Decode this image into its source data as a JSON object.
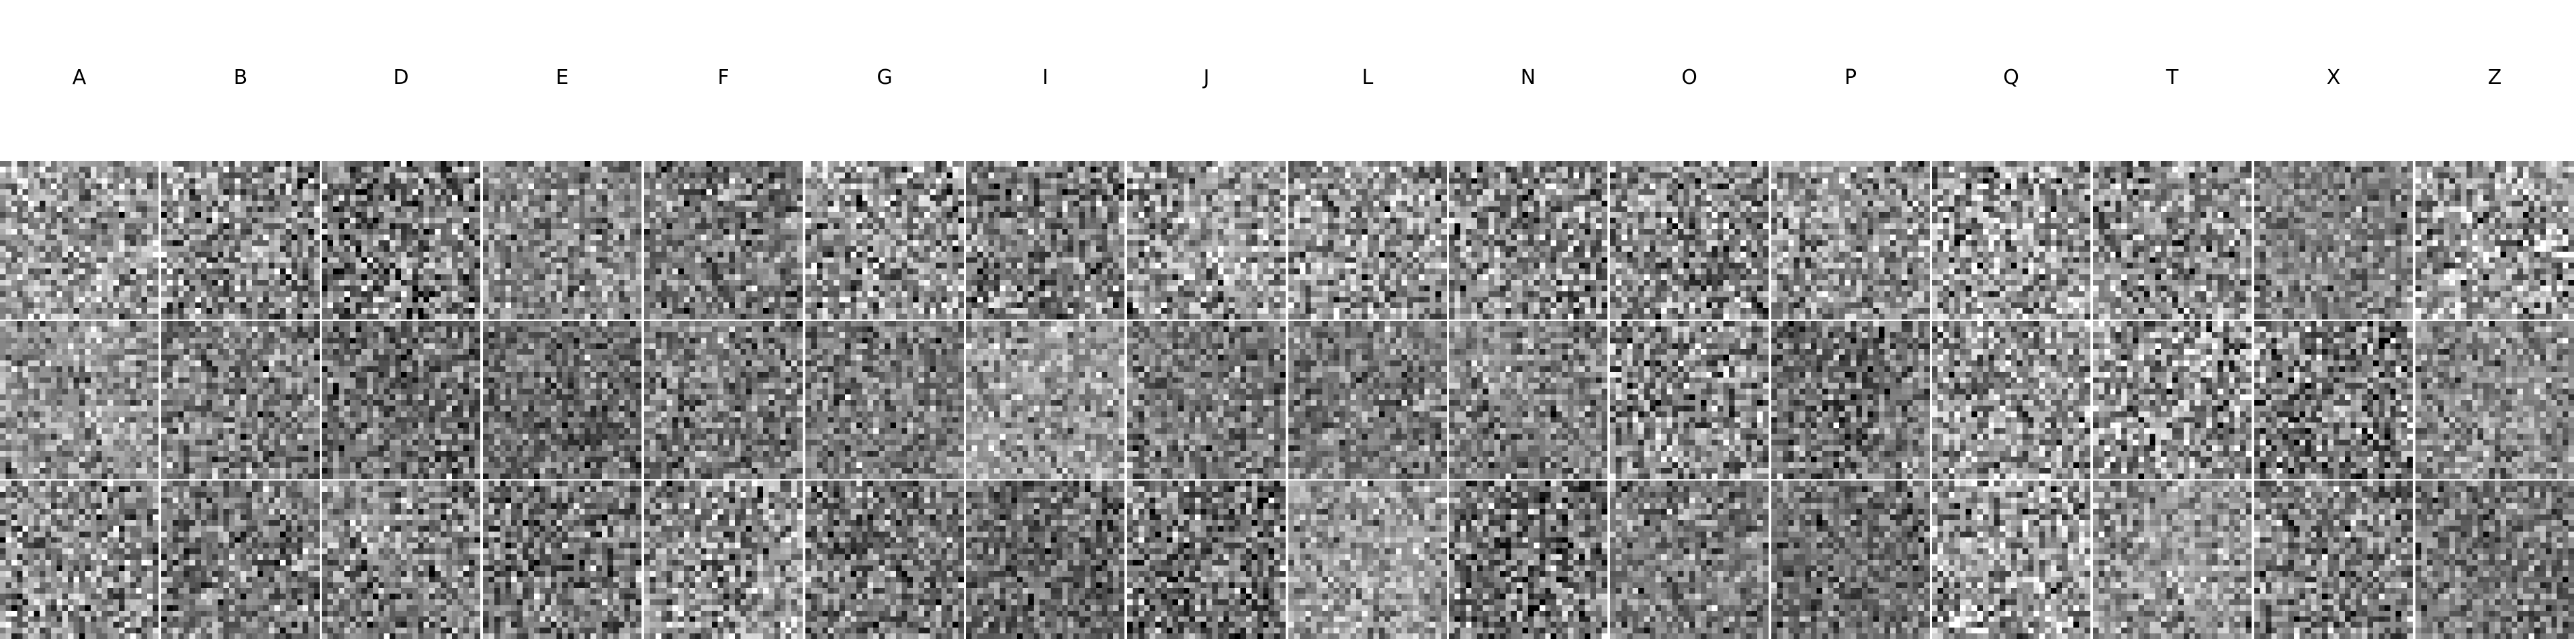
{
  "figure": {
    "columns": [
      "A",
      "B",
      "D",
      "E",
      "F",
      "G",
      "I",
      "J",
      "L",
      "N",
      "O",
      "P",
      "Q",
      "T",
      "X",
      "Z"
    ],
    "rows": 3,
    "image_type": "grayscale-noise-sample-grid",
    "pixel_grid": 28,
    "colors": {
      "background": "#ffffff",
      "label": "#000000",
      "tile_mid_gray": "#808080"
    }
  }
}
